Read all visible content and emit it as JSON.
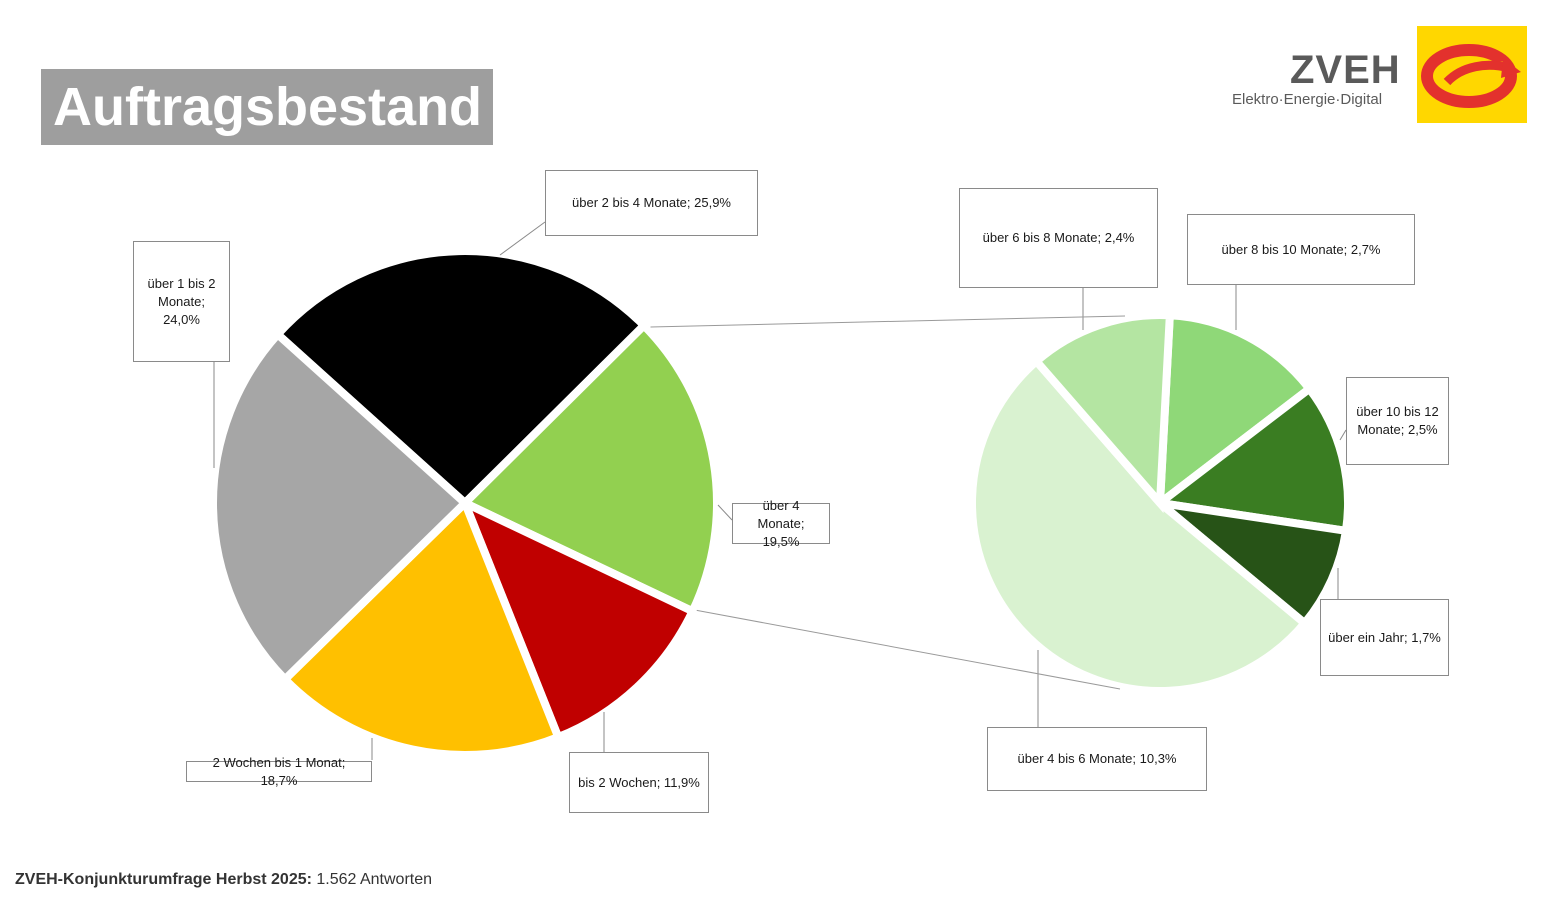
{
  "header": {
    "title": "Auftragsbestand"
  },
  "logo": {
    "word": "ZVEH",
    "subtitle": "Elektro·Energie·Digital"
  },
  "footer": {
    "bold": "ZVEH-Konjunkturumfrage Herbst 2025:",
    "rest": " 1.562 Antworten"
  },
  "chart_data": [
    {
      "type": "pie",
      "slices": [
        {
          "label": "über 2 bis 4 Monate; 25,9%",
          "value": 25.9,
          "color": "#000000"
        },
        {
          "label": "über 4 Monate; 19,5%",
          "value": 19.5,
          "color": "#92d050"
        },
        {
          "label": "bis 2 Wochen; 11,9%",
          "value": 11.9,
          "color": "#c00000"
        },
        {
          "label": "2 Wochen bis 1 Monat; 18,7%",
          "value": 18.7,
          "color": "#ffc000"
        },
        {
          "label": "über 1 bis 2 Monate; 24,0%",
          "value": 24.0,
          "color": "#a6a6a6"
        }
      ]
    },
    {
      "type": "pie",
      "slices": [
        {
          "label": "über 8 bis 10 Monate; 2,7%",
          "value": 2.7,
          "color": "#8fd878"
        },
        {
          "label": "über 10 bis 12 Monate; 2,5%",
          "value": 2.5,
          "color": "#3a7d22"
        },
        {
          "label": "über ein Jahr; 1,7%",
          "value": 1.7,
          "color": "#275317"
        },
        {
          "label": "über 4 bis 6 Monate; 10,3%",
          "value": 10.3,
          "color": "#d9f2d0"
        },
        {
          "label": "über 6 bis 8 Monate; 2,4%",
          "value": 2.4,
          "color": "#b4e5a2"
        }
      ]
    }
  ]
}
